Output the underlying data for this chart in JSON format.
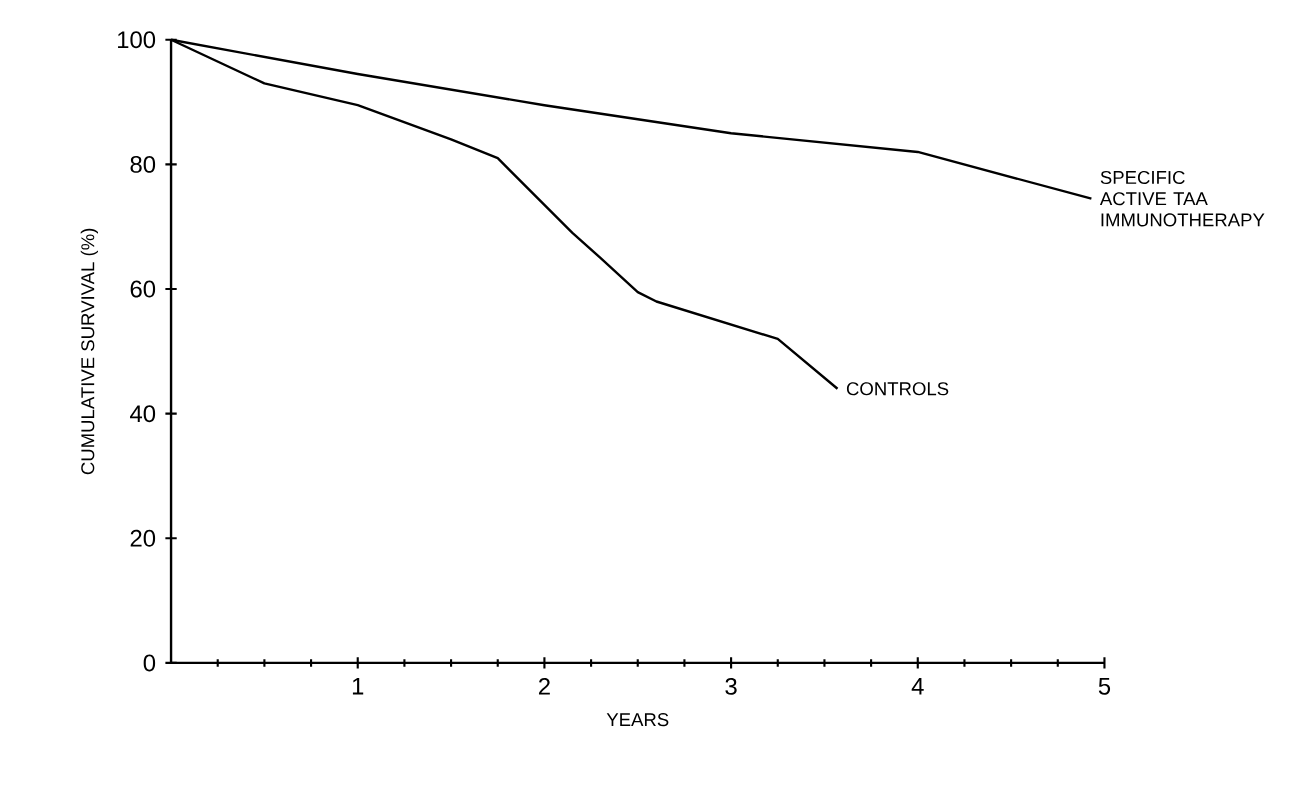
{
  "chart_data": {
    "type": "line",
    "xlabel": "YEARS",
    "ylabel": "CUMULATIVE SURVIVAL (%)",
    "xlim": [
      0,
      5
    ],
    "ylim": [
      0,
      100
    ],
    "xticks": [
      1,
      2,
      3,
      4,
      5
    ],
    "yticks": [
      0,
      20,
      40,
      60,
      80,
      100
    ],
    "grid": false,
    "legend": false,
    "marker": "none",
    "line_style": "solid",
    "series": [
      {
        "name": "SPECIFIC ACTIVE TAA IMMUNOTHERAPY",
        "color": "#000000",
        "x": [
          0,
          1,
          2,
          3,
          4,
          4.93
        ],
        "values": [
          100,
          94.5,
          89.5,
          85,
          82,
          74.5
        ]
      },
      {
        "name": "CONTROLS",
        "color": "#000000",
        "x": [
          0,
          0.5,
          1,
          1.5,
          1.75,
          2.15,
          2.3,
          2.5,
          2.6,
          3.25,
          3.57
        ],
        "values": [
          100,
          93,
          89.5,
          84,
          81,
          69,
          65,
          59.5,
          58,
          52,
          44
        ]
      }
    ]
  }
}
